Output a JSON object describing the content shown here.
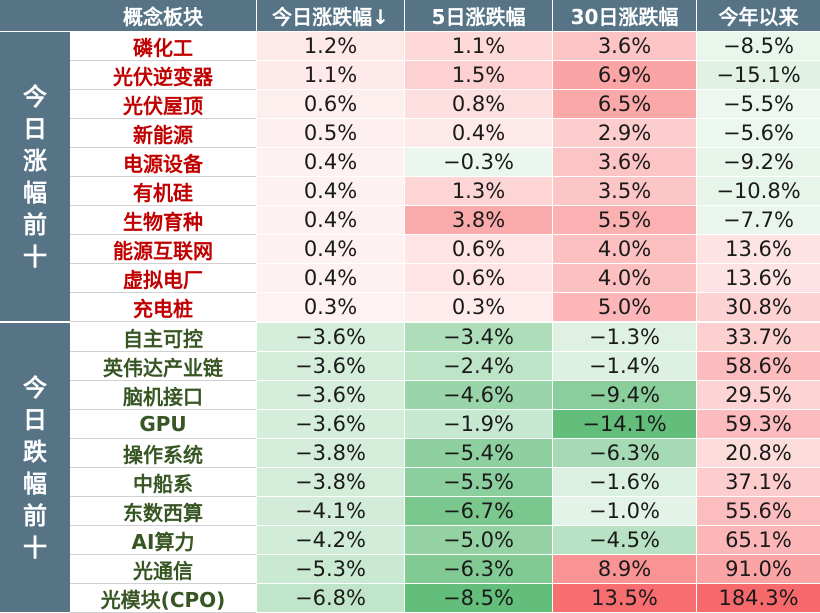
{
  "chart_data": {
    "type": "table",
    "columns": [
      "概念板块",
      "今日涨跌幅↓",
      "5日涨跌幅",
      "30日涨跌幅",
      "今年以来"
    ],
    "groups": [
      {
        "label": "今日涨幅前十",
        "rows": [
          {
            "name": "磷化工",
            "values": [
              "1.2%",
              "1.1%",
              "3.6%",
              "−8.5%"
            ]
          },
          {
            "name": "光伏逆变器",
            "values": [
              "1.1%",
              "1.5%",
              "6.9%",
              "−15.1%"
            ]
          },
          {
            "name": "光伏屋顶",
            "values": [
              "0.6%",
              "0.8%",
              "6.5%",
              "−5.5%"
            ]
          },
          {
            "name": "新能源",
            "values": [
              "0.5%",
              "0.4%",
              "2.9%",
              "−5.6%"
            ]
          },
          {
            "name": "电源设备",
            "values": [
              "0.4%",
              "−0.3%",
              "3.6%",
              "−9.2%"
            ]
          },
          {
            "name": "有机硅",
            "values": [
              "0.4%",
              "1.3%",
              "3.5%",
              "−10.8%"
            ]
          },
          {
            "name": "生物育种",
            "values": [
              "0.4%",
              "3.8%",
              "5.5%",
              "−7.7%"
            ]
          },
          {
            "name": "能源互联网",
            "values": [
              "0.4%",
              "0.6%",
              "4.0%",
              "13.6%"
            ]
          },
          {
            "name": "虚拟电厂",
            "values": [
              "0.4%",
              "0.6%",
              "4.0%",
              "13.6%"
            ]
          },
          {
            "name": "充电桩",
            "values": [
              "0.3%",
              "0.3%",
              "5.0%",
              "30.8%"
            ]
          }
        ]
      },
      {
        "label": "今日跌幅前十",
        "rows": [
          {
            "name": "自主可控",
            "values": [
              "−3.6%",
              "−3.4%",
              "−1.3%",
              "33.7%"
            ]
          },
          {
            "name": "英伟达产业链",
            "values": [
              "−3.6%",
              "−2.4%",
              "−1.4%",
              "58.6%"
            ]
          },
          {
            "name": "脑机接口",
            "values": [
              "−3.6%",
              "−4.6%",
              "−9.4%",
              "29.5%"
            ]
          },
          {
            "name": "GPU",
            "values": [
              "−3.6%",
              "−1.9%",
              "−14.1%",
              "59.3%"
            ]
          },
          {
            "name": "操作系统",
            "values": [
              "−3.8%",
              "−5.4%",
              "−6.3%",
              "20.8%"
            ]
          },
          {
            "name": "中船系",
            "values": [
              "−3.8%",
              "−5.5%",
              "−1.6%",
              "37.1%"
            ]
          },
          {
            "name": "东数西算",
            "values": [
              "−4.1%",
              "−6.7%",
              "−1.0%",
              "55.6%"
            ]
          },
          {
            "name": "AI算力",
            "values": [
              "−4.2%",
              "−5.0%",
              "−4.5%",
              "65.1%"
            ]
          },
          {
            "name": "光通信",
            "values": [
              "−5.3%",
              "−6.3%",
              "8.9%",
              "91.0%"
            ]
          },
          {
            "name": "光模块(CPO)",
            "values": [
              "−6.8%",
              "−8.5%",
              "13.5%",
              "184.3%"
            ]
          }
        ]
      }
    ]
  },
  "colors": {
    "header_bg": "#577487",
    "header_text": "#ffffff",
    "up_name": "#c00000",
    "down_name": "#375623",
    "positive_scale": "#f8696b",
    "negative_scale": "#63be7b"
  }
}
